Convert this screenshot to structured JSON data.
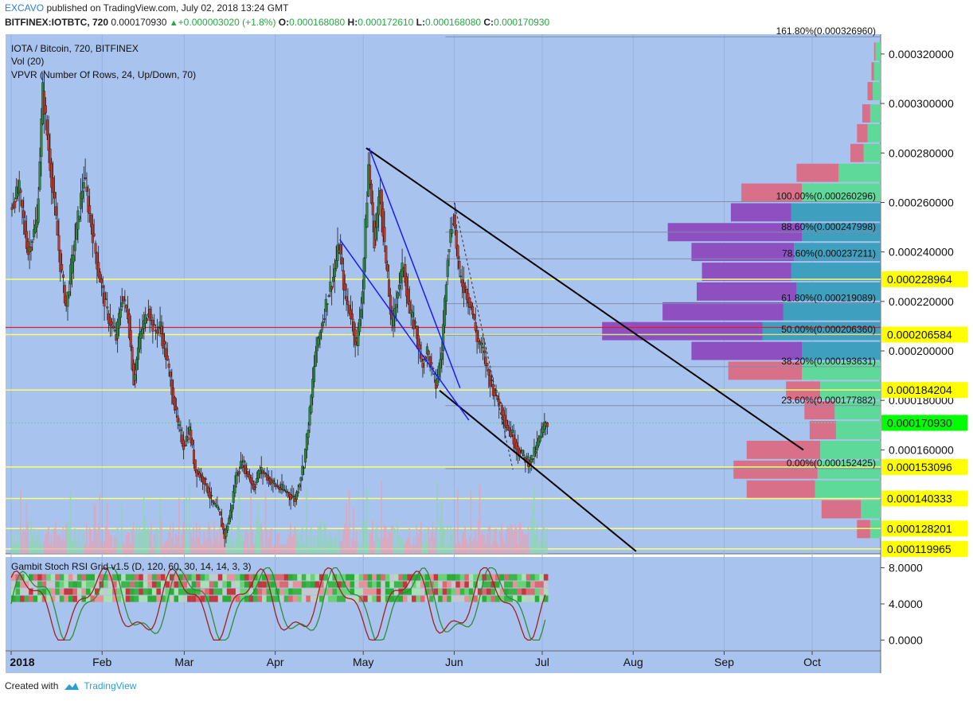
{
  "header": {
    "author": "EXCAVO",
    "published": "published on TradingView.com, July 02, 2018 13:24 GMT",
    "symbol": "BITFINEX:IOTBTC, 720",
    "last": "0.000170930",
    "change": "+0.000003020 (+1.8%)",
    "o_label": "O:",
    "o": "0.000168080",
    "h_label": "H:",
    "h": "0.000172610",
    "l_label": "L:",
    "l": "0.000168080",
    "c_label": "C:",
    "c": "0.000170930"
  },
  "legend": {
    "title": "IOTA / Bitcoin, 720, BITFINEX",
    "vol": "Vol (20)",
    "vpvr": "VPVR (Number Of Rows, 24, Up/Down, 70)",
    "indicator": "Gambit Stoch RSI Grid v1.5 (D, 120, 60, 30, 14, 14, 3, 3)"
  },
  "footer": {
    "created": "Created with",
    "brand": "TradingView"
  },
  "colors": {
    "bg": "#a9c3ef",
    "up": "#2e8b3d",
    "down": "#c0392b",
    "vp_up": "#5fd99a",
    "vp_down": "#d9708a",
    "vp_up_hi": "#3f9fbf",
    "vp_down_hi": "#8e4fc0",
    "hline": "#ffff66",
    "label_bg": "#ffff00",
    "price_bg": "#00ff00",
    "red_line": "#e02020"
  },
  "chart_data": {
    "type": "candlestick",
    "ylim": [
      0.000118,
      0.000328
    ],
    "y_ticks": [
      "0.000320000",
      "0.000300000",
      "0.000280000",
      "0.000260000",
      "0.000240000",
      "0.000220000",
      "0.000200000",
      "0.000180000",
      "0.000160000"
    ],
    "y_tick_values": [
      0.00032,
      0.0003,
      0.00028,
      0.00026,
      0.00024,
      0.00022,
      0.0002,
      0.00018,
      0.00016
    ],
    "x_ticks": [
      "2018",
      "Feb",
      "Mar",
      "Apr",
      "May",
      "Jun",
      "Jul",
      "Aug",
      "Sep",
      "Oct"
    ],
    "x_tick_days": [
      0,
      31,
      59,
      90,
      120,
      151,
      181,
      212,
      243,
      273
    ],
    "last_day": 182.5,
    "close_path": [
      [
        0,
        0.000258
      ],
      [
        3,
        0.000265
      ],
      [
        6,
        0.00024
      ],
      [
        9,
        0.000252
      ],
      [
        11,
        0.000305
      ],
      [
        14,
        0.00027
      ],
      [
        17,
        0.000235
      ],
      [
        19,
        0.000218
      ],
      [
        22,
        0.000245
      ],
      [
        25,
        0.00027
      ],
      [
        27,
        0.000255
      ],
      [
        30,
        0.000232
      ],
      [
        33,
        0.000215
      ],
      [
        36,
        0.000205
      ],
      [
        38,
        0.000222
      ],
      [
        40,
        0.000215
      ],
      [
        42,
        0.000188
      ],
      [
        44,
        0.000205
      ],
      [
        47,
        0.000217
      ],
      [
        49,
        0.000208
      ],
      [
        51,
        0.00021
      ],
      [
        53,
        0.000198
      ],
      [
        55,
        0.000185
      ],
      [
        57,
        0.00017
      ],
      [
        59,
        0.000162
      ],
      [
        61,
        0.000168
      ],
      [
        63,
        0.000152
      ],
      [
        66,
        0.000148
      ],
      [
        69,
        0.000138
      ],
      [
        71,
        0.000135
      ],
      [
        73,
        0.000125
      ],
      [
        75,
        0.000135
      ],
      [
        77,
        0.00015
      ],
      [
        79,
        0.000155
      ],
      [
        81,
        0.00015
      ],
      [
        83,
        0.000145
      ],
      [
        85,
        0.000152
      ],
      [
        87,
        0.00015
      ],
      [
        89,
        0.000147
      ],
      [
        91,
        0.000145
      ],
      [
        94,
        0.000143
      ],
      [
        97,
        0.00014
      ],
      [
        100,
        0.000155
      ],
      [
        102,
        0.000175
      ],
      [
        104,
        0.0002
      ],
      [
        106,
        0.00021
      ],
      [
        108,
        0.000222
      ],
      [
        110,
        0.00023
      ],
      [
        112,
        0.000243
      ],
      [
        114,
        0.000222
      ],
      [
        116,
        0.000215
      ],
      [
        118,
        0.000202
      ],
      [
        120,
        0.000225
      ],
      [
        122,
        0.000275
      ],
      [
        124,
        0.000245
      ],
      [
        126,
        0.000265
      ],
      [
        128,
        0.000235
      ],
      [
        130,
        0.00021
      ],
      [
        132,
        0.000225
      ],
      [
        134,
        0.000235
      ],
      [
        136,
        0.000215
      ],
      [
        138,
        0.00021
      ],
      [
        140,
        0.000195
      ],
      [
        142,
        0.0002
      ],
      [
        145,
        0.000186
      ],
      [
        147,
        0.0002
      ],
      [
        149,
        0.00024
      ],
      [
        151,
        0.000255
      ],
      [
        153,
        0.00023
      ],
      [
        155,
        0.000225
      ],
      [
        157,
        0.000218
      ],
      [
        159,
        0.000205
      ],
      [
        161,
        0.0002
      ],
      [
        163,
        0.00019
      ],
      [
        165,
        0.000183
      ],
      [
        167,
        0.000178
      ],
      [
        169,
        0.00017
      ],
      [
        171,
        0.000166
      ],
      [
        173,
        0.00016
      ],
      [
        175,
        0.000157
      ],
      [
        177,
        0.000155
      ],
      [
        179,
        0.00016
      ],
      [
        181,
        0.000167
      ],
      [
        182.5,
        0.000171
      ]
    ],
    "fib_levels": [
      {
        "label": "161.80%(0.000326960)",
        "value": 0.00032696
      },
      {
        "label": "100.00%(0.000260296)",
        "value": 0.000260296
      },
      {
        "label": "88.60%(0.000247998)",
        "value": 0.000247998
      },
      {
        "label": "78.60%(0.000237211)",
        "value": 0.000237211
      },
      {
        "label": "61.80%(0.000219089)",
        "value": 0.000219089
      },
      {
        "label": "50.00%(0.000206360)",
        "value": 0.00020636
      },
      {
        "label": "38.20%(0.000193631)",
        "value": 0.000193631
      },
      {
        "label": "23.60%(0.000177882)",
        "value": 0.000177882
      },
      {
        "label": "0.00%(0.000152425)",
        "value": 0.000152425
      }
    ],
    "h_levels": [
      {
        "label": "0.000228964",
        "value": 0.000228964
      },
      {
        "label": "0.000206584",
        "value": 0.000206584
      },
      {
        "label": "0.000184204",
        "value": 0.000184204
      },
      {
        "label": "0.000153096",
        "value": 0.000153096
      },
      {
        "label": "0.000140333",
        "value": 0.000140333
      },
      {
        "label": "0.000128201",
        "value": 0.000128201
      },
      {
        "label": "0.000119965",
        "value": 0.000119965
      }
    ],
    "red_level": 0.0002095,
    "current_price": {
      "label": "0.000170930",
      "value": 0.00017093
    },
    "trend_lines": [
      {
        "color": "#000000",
        "p1": [
          121,
          0.000282
        ],
        "p2": [
          270,
          0.00016
        ]
      },
      {
        "color": "#000000",
        "p1": [
          146,
          0.000184
        ],
        "p2": [
          213,
          0.000119
        ]
      },
      {
        "color": "#1a1aff",
        "p1": [
          112,
          0.000245
        ],
        "p2": [
          156,
          0.000172
        ]
      },
      {
        "color": "#1a1aff",
        "p1": [
          122,
          0.000282
        ],
        "p2": [
          153,
          0.000185
        ]
      },
      {
        "color": "#333333",
        "p1": [
          151,
          0.00026
        ],
        "p2": [
          171,
          0.000152
        ],
        "dashed": true
      }
    ],
    "volume_profile": [
      {
        "price": 0.000321,
        "up": 0.4,
        "down": 0.1
      },
      {
        "price": 0.000313,
        "up": 0.5,
        "down": 0.2
      },
      {
        "price": 0.000305,
        "up": 0.6,
        "down": 0.4
      },
      {
        "price": 0.000296,
        "up": 0.8,
        "down": 0.6
      },
      {
        "price": 0.000288,
        "up": 1.0,
        "down": 0.8
      },
      {
        "price": 0.00028,
        "up": 1.3,
        "down": 1.0
      },
      {
        "price": 0.000272,
        "up": 3.2,
        "down": 3.2
      },
      {
        "price": 0.000264,
        "up": 6.0,
        "down": 4.6
      },
      {
        "price": 0.000256,
        "up": 6.8,
        "down": 4.6
      },
      {
        "price": 0.000248,
        "up": 6.0,
        "down": 10.2
      },
      {
        "price": 0.00024,
        "up": 6.6,
        "down": 7.8
      },
      {
        "price": 0.000232,
        "up": 6.8,
        "down": 6.8
      },
      {
        "price": 0.000224,
        "up": 6.4,
        "down": 7.6
      },
      {
        "price": 0.000216,
        "up": 7.4,
        "down": 9.2
      },
      {
        "price": 0.000208,
        "up": 9.0,
        "down": 12.2
      },
      {
        "price": 0.0002,
        "up": 6.0,
        "down": 8.4
      },
      {
        "price": 0.000192,
        "up": 6.0,
        "down": 5.6
      },
      {
        "price": 0.000184,
        "up": 4.6,
        "down": 2.6
      },
      {
        "price": 0.000176,
        "up": 3.5,
        "down": 2.3
      },
      {
        "price": 0.000168,
        "up": 3.4,
        "down": 2.0
      },
      {
        "price": 0.00016,
        "up": 4.6,
        "down": 5.6
      },
      {
        "price": 0.000152,
        "up": 4.8,
        "down": 6.4
      },
      {
        "price": 0.000144,
        "up": 5.0,
        "down": 5.2
      },
      {
        "price": 0.000136,
        "up": 1.5,
        "down": 3.0
      },
      {
        "price": 0.000128,
        "up": 0.8,
        "down": 1.0
      }
    ],
    "rsi_ticks": [
      "8.0000",
      "4.0000",
      "0.0000"
    ],
    "rsi_tick_values": [
      8,
      4,
      0
    ],
    "rsi_ylim": [
      -1.2,
      9.2
    ]
  }
}
